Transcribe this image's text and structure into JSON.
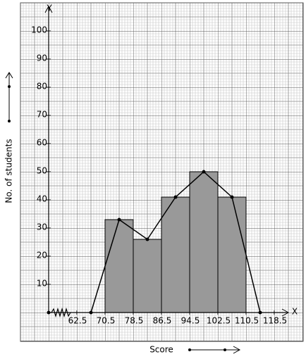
{
  "chart_data": {
    "type": "histogram",
    "x_label": "Score",
    "y_label": "No. of students",
    "x_axis_name": "X",
    "y_axis_name": "Y",
    "bins": [
      70.5,
      78.5,
      86.5,
      94.5,
      102.5,
      110.5
    ],
    "counts": [
      33,
      26,
      41,
      50,
      41
    ],
    "polygon": {
      "x": [
        66.5,
        74.5,
        82.5,
        90.5,
        98.5,
        106.5,
        114.5
      ],
      "values": [
        0,
        33,
        26,
        41,
        50,
        41,
        0
      ]
    },
    "bar_color": "#999999",
    "line_color": "#000000",
    "xlim": [
      54.5,
      122.5
    ],
    "xticks": [
      62.5,
      70.5,
      78.5,
      86.5,
      94.5,
      102.5,
      110.5,
      118.5
    ],
    "ylim": [
      0,
      110
    ],
    "yticks": [
      10,
      20,
      30,
      40,
      50,
      60,
      70,
      80,
      90,
      100
    ],
    "grid": true
  }
}
